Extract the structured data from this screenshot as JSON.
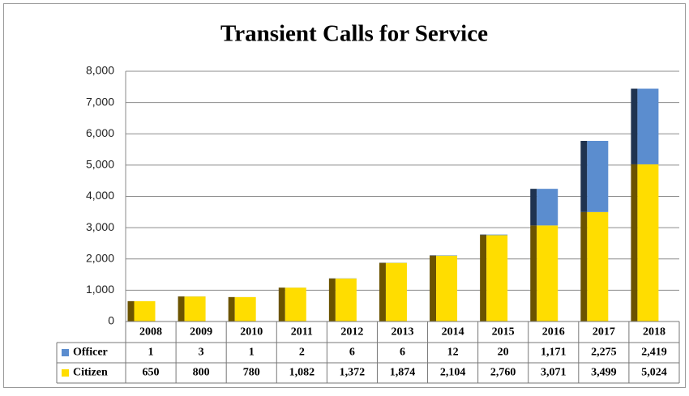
{
  "chart_data": {
    "type": "stacked_bar",
    "title": "Transient Calls for Service",
    "categories": [
      "2008",
      "2009",
      "2010",
      "2011",
      "2012",
      "2013",
      "2014",
      "2015",
      "2016",
      "2017",
      "2018"
    ],
    "series": [
      {
        "name": "Citizen",
        "color": "#ffdd00",
        "side_color": "#6b5300",
        "values": [
          650,
          800,
          780,
          1082,
          1372,
          1874,
          2104,
          2760,
          3071,
          3499,
          5024
        ],
        "value_labels": [
          "650",
          "800",
          "780",
          "1,082",
          "1,372",
          "1,874",
          "2,104",
          "2,760",
          "3,071",
          "3,499",
          "5,024"
        ]
      },
      {
        "name": "Officer",
        "color": "#5b8dcf",
        "side_color": "#1f3350",
        "values": [
          1,
          3,
          1,
          2,
          6,
          6,
          12,
          20,
          1171,
          2275,
          2419
        ],
        "value_labels": [
          "1",
          "3",
          "1",
          "2",
          "6",
          "6",
          "12",
          "20",
          "1,171",
          "2,275",
          "2,419"
        ]
      }
    ],
    "ylim": [
      0,
      8000
    ],
    "yticks": [
      0,
      {
        "value": 1000,
        "label": "1,000"
      },
      {
        "value": 2000,
        "label": "2,000"
      },
      {
        "value": 3000,
        "label": "3,000"
      },
      {
        "value": 4000,
        "label": "4,000"
      },
      {
        "value": 5000,
        "label": "5,000"
      },
      {
        "value": 6000,
        "label": "6,000"
      },
      {
        "value": 7000,
        "label": "7,000"
      },
      {
        "value": 8000,
        "label": "8,000"
      }
    ],
    "grid": true
  }
}
